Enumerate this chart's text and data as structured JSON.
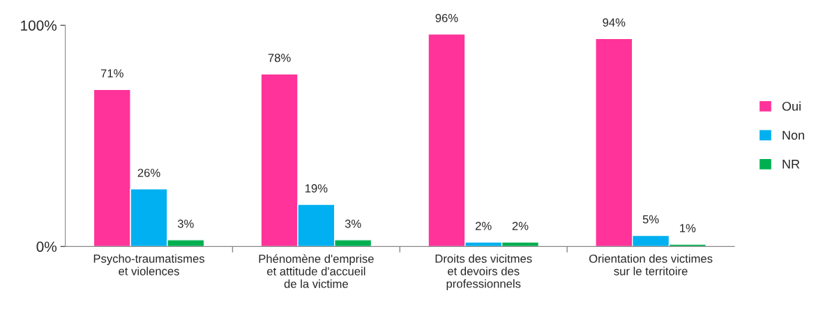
{
  "chart_data": {
    "type": "bar",
    "categories": [
      "Psycho-traumatismes\net violences",
      "Phénomène d'emprise\net attitude d'accueil\nde la victime",
      "Droits des vicitmes\net devoirs des\nprofessionnels",
      "Orientation des victimes\nsur le territoire"
    ],
    "series": [
      {
        "name": "Oui",
        "color": "#ff3399",
        "values": [
          71,
          78,
          96,
          94
        ],
        "value_labels": [
          "71%",
          "78%",
          "96%",
          "94%"
        ]
      },
      {
        "name": "Non",
        "color": "#00b0f0",
        "values": [
          26,
          19,
          2,
          5
        ],
        "value_labels": [
          "26%",
          "19%",
          "2%",
          "5%"
        ]
      },
      {
        "name": "NR",
        "color": "#00b050",
        "values": [
          3,
          3,
          2,
          1
        ],
        "value_labels": [
          "3%",
          "3%",
          "2%",
          "1%"
        ]
      }
    ],
    "ylim": [
      0,
      100
    ],
    "yticks": [
      {
        "value": 0,
        "label": "0%"
      },
      {
        "value": 100,
        "label": "100%"
      }
    ],
    "grid": false,
    "legend": "right"
  }
}
